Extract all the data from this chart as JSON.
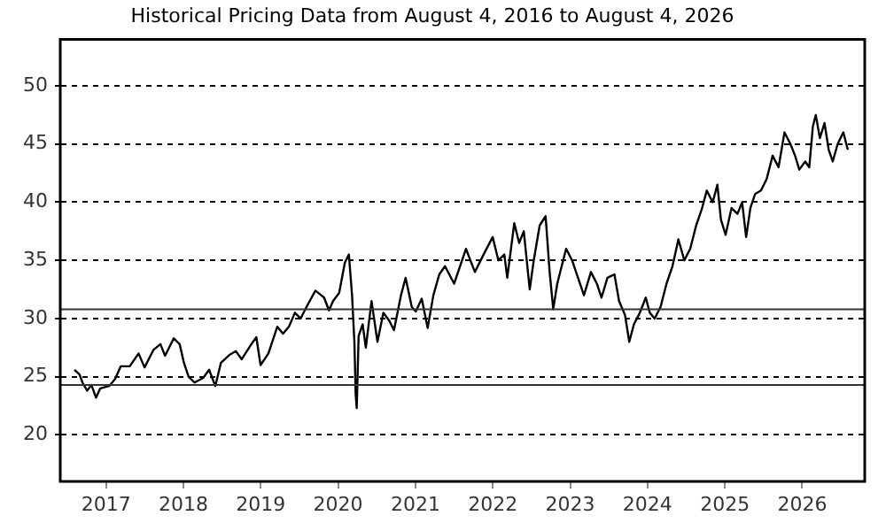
{
  "chart_data": {
    "type": "line",
    "title": "Historical Pricing Data from August 4, 2016 to August 4, 2026",
    "xlim": [
      "2016-05-29",
      "2026-10-23"
    ],
    "xticks": [
      {
        "value": "2017-01-01",
        "label": "2017"
      },
      {
        "value": "2018-01-01",
        "label": "2018"
      },
      {
        "value": "2019-01-01",
        "label": "2019"
      },
      {
        "value": "2020-01-01",
        "label": "2020"
      },
      {
        "value": "2021-01-01",
        "label": "2021"
      },
      {
        "value": "2022-01-01",
        "label": "2022"
      },
      {
        "value": "2023-01-01",
        "label": "2023"
      },
      {
        "value": "2024-01-01",
        "label": "2024"
      },
      {
        "value": "2025-01-01",
        "label": "2025"
      },
      {
        "value": "2026-01-01",
        "label": "2026"
      }
    ],
    "ylim": [
      16,
      54
    ],
    "yticks": [
      20,
      25,
      30,
      35,
      40,
      45,
      50
    ],
    "grid": "y",
    "line_style": "solid",
    "marker": "none",
    "ref_lines": [
      {
        "axis": "y",
        "value": 30.8,
        "color": "#333333",
        "line_style": "solid"
      },
      {
        "axis": "y",
        "value": 24.3,
        "color": "#333333",
        "line_style": "solid"
      }
    ],
    "x": [
      "2016-08-04",
      "2016-08-28",
      "2016-09-11",
      "2016-10-03",
      "2016-10-23",
      "2016-11-14",
      "2016-12-04",
      "2017-01-15",
      "2017-02-12",
      "2017-03-11",
      "2017-04-22",
      "2017-06-03",
      "2017-07-01",
      "2017-08-12",
      "2017-09-14",
      "2017-10-06",
      "2017-11-16",
      "2017-12-14",
      "2018-01-03",
      "2018-01-25",
      "2018-02-22",
      "2018-04-04",
      "2018-05-02",
      "2018-05-31",
      "2018-06-27",
      "2018-08-08",
      "2018-09-05",
      "2018-10-03",
      "2018-11-14",
      "2018-12-11",
      "2018-12-31",
      "2019-02-06",
      "2019-03-20",
      "2019-04-16",
      "2019-05-14",
      "2019-06-11",
      "2019-07-08",
      "2019-08-05",
      "2019-09-16",
      "2019-10-27",
      "2019-11-19",
      "2019-12-08",
      "2020-01-06",
      "2020-02-02",
      "2020-02-21",
      "2020-03-07",
      "2020-03-18",
      "2020-03-24",
      "2020-03-29",
      "2020-04-07",
      "2020-04-26",
      "2020-05-11",
      "2020-06-07",
      "2020-07-05",
      "2020-08-02",
      "2020-08-30",
      "2020-09-21",
      "2020-10-24",
      "2020-11-15",
      "2020-12-14",
      "2021-01-02",
      "2021-01-30",
      "2021-02-27",
      "2021-03-26",
      "2021-04-23",
      "2021-05-20",
      "2021-07-02",
      "2021-08-27",
      "2021-10-08",
      "2021-11-18",
      "2021-12-31",
      "2022-01-27",
      "2022-02-24",
      "2022-03-10",
      "2022-04-12",
      "2022-05-05",
      "2022-05-27",
      "2022-06-24",
      "2022-07-13",
      "2022-08-10",
      "2022-09-07",
      "2022-09-26",
      "2022-10-13",
      "2022-11-01",
      "2022-12-13",
      "2023-01-10",
      "2023-02-07",
      "2023-03-07",
      "2023-04-09",
      "2023-05-07",
      "2023-05-29",
      "2023-06-26",
      "2023-07-29",
      "2023-08-20",
      "2023-09-17",
      "2023-10-07",
      "2023-10-29",
      "2023-11-26",
      "2023-12-24",
      "2024-01-12",
      "2024-02-04",
      "2024-03-03",
      "2024-03-31",
      "2024-04-28",
      "2024-05-26",
      "2024-06-23",
      "2024-07-21",
      "2024-08-18",
      "2024-09-15",
      "2024-10-07",
      "2024-11-04",
      "2024-11-26",
      "2024-12-13",
      "2025-01-04",
      "2025-02-01",
      "2025-03-01",
      "2025-03-23",
      "2025-04-11",
      "2025-05-01",
      "2025-05-23",
      "2025-06-20",
      "2025-07-17",
      "2025-08-14",
      "2025-09-11",
      "2025-10-09",
      "2025-11-06",
      "2025-11-28",
      "2025-12-18",
      "2026-01-15",
      "2026-02-03",
      "2026-02-20",
      "2026-03-06",
      "2026-03-25",
      "2026-04-16",
      "2026-05-06",
      "2026-05-25",
      "2026-06-17",
      "2026-07-14",
      "2026-08-04"
    ],
    "series": [
      {
        "color": "#000000",
        "values": [
          25.6,
          25.2,
          24.5,
          23.8,
          24.3,
          23.2,
          24.0,
          24.2,
          24.8,
          25.9,
          25.9,
          27.0,
          25.8,
          27.3,
          27.8,
          26.8,
          28.3,
          27.8,
          26.2,
          25.0,
          24.5,
          24.9,
          25.6,
          24.2,
          26.2,
          26.9,
          27.2,
          26.5,
          27.7,
          28.4,
          26.0,
          27.0,
          29.3,
          28.7,
          29.3,
          30.5,
          30.0,
          31.0,
          32.4,
          31.8,
          30.7,
          31.5,
          32.2,
          34.8,
          35.5,
          32.0,
          28.0,
          23.5,
          22.3,
          28.5,
          29.5,
          27.5,
          31.5,
          28.0,
          30.5,
          29.8,
          29.0,
          32.0,
          33.5,
          31.0,
          30.6,
          31.7,
          29.2,
          32.0,
          33.8,
          34.5,
          33.0,
          36.0,
          34.0,
          35.5,
          37.0,
          35.0,
          35.5,
          33.5,
          38.2,
          36.5,
          37.5,
          32.5,
          35.0,
          38.0,
          38.8,
          34.0,
          30.8,
          33.0,
          36.0,
          35.0,
          33.5,
          32.0,
          34.0,
          33.0,
          31.8,
          33.5,
          33.8,
          31.5,
          30.3,
          28.0,
          29.5,
          30.5,
          31.8,
          30.5,
          30.0,
          31.0,
          33.0,
          34.5,
          36.8,
          35.0,
          36.0,
          38.0,
          39.5,
          41.0,
          40.0,
          41.5,
          38.5,
          37.2,
          39.5,
          39.0,
          40.0,
          37.0,
          39.5,
          40.7,
          41.0,
          42.0,
          44.0,
          43.0,
          46.0,
          45.0,
          44.0,
          42.8,
          43.5,
          43.0,
          46.5,
          47.5,
          45.5,
          46.8,
          44.5,
          43.5,
          45.0,
          46.0,
          44.5
        ]
      }
    ]
  }
}
